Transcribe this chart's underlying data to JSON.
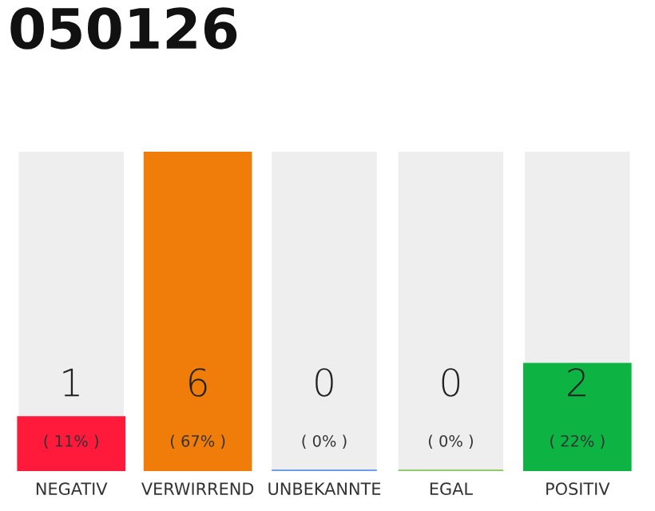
{
  "chart_data": {
    "type": "bar",
    "title": "050126",
    "data_labels": true,
    "categories": [
      "NEGATIV",
      "VERWIRREND",
      "UNBEKANNTE",
      "EGAL",
      "POSITIV"
    ],
    "values": [
      1,
      6,
      0,
      0,
      2
    ],
    "colors": [
      "#ff1a3c",
      "#f07d0a",
      "#6d9eeb",
      "#8fce6a",
      "#0db443"
    ],
    "annotations": [
      "( 11% )",
      "( 67% )",
      "( 0% )",
      "( 0% )",
      "( 22% )"
    ]
  }
}
